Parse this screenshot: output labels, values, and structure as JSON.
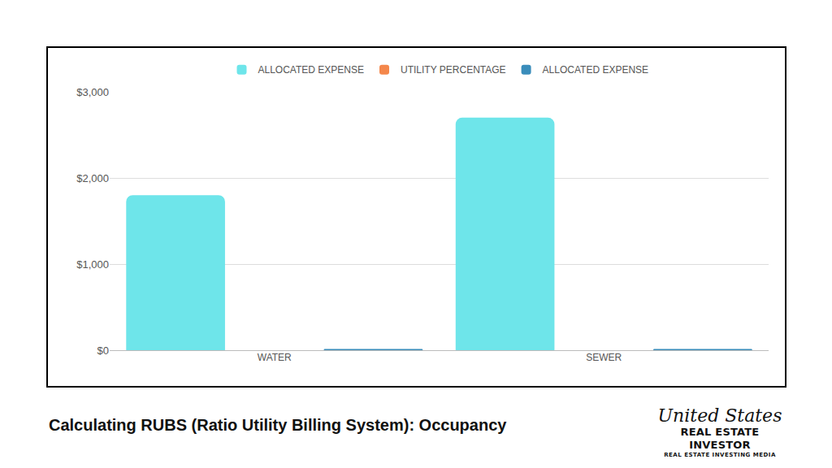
{
  "chart_data": {
    "type": "bar",
    "title": "Calculating RUBS (Ratio Utility Billing System): Occupancy",
    "categories": [
      "WATER",
      "SEWER"
    ],
    "series": [
      {
        "name": "ALLOCATED EXPENSE",
        "color": "#6ee5ea",
        "values": [
          1800,
          2700
        ]
      },
      {
        "name": "UTILITY PERCENTAGE",
        "color": "#f4874b",
        "values": [
          0,
          0
        ]
      },
      {
        "name": "ALLOCATED EXPENSE",
        "color": "#3a8dbb",
        "values": [
          15,
          15
        ]
      }
    ],
    "ylim": [
      0,
      3000
    ],
    "yticks": [
      {
        "value": 0,
        "label": "$0"
      },
      {
        "value": 1000,
        "label": "$1,000"
      },
      {
        "value": 2000,
        "label": "$2,000"
      },
      {
        "value": 3000,
        "label": "$3,000"
      }
    ],
    "grid": true,
    "legend": "top",
    "annotations": [
      "United States",
      "REAL ESTATE INVESTOR",
      "REAL ESTATE INVESTING MEDIA"
    ]
  }
}
